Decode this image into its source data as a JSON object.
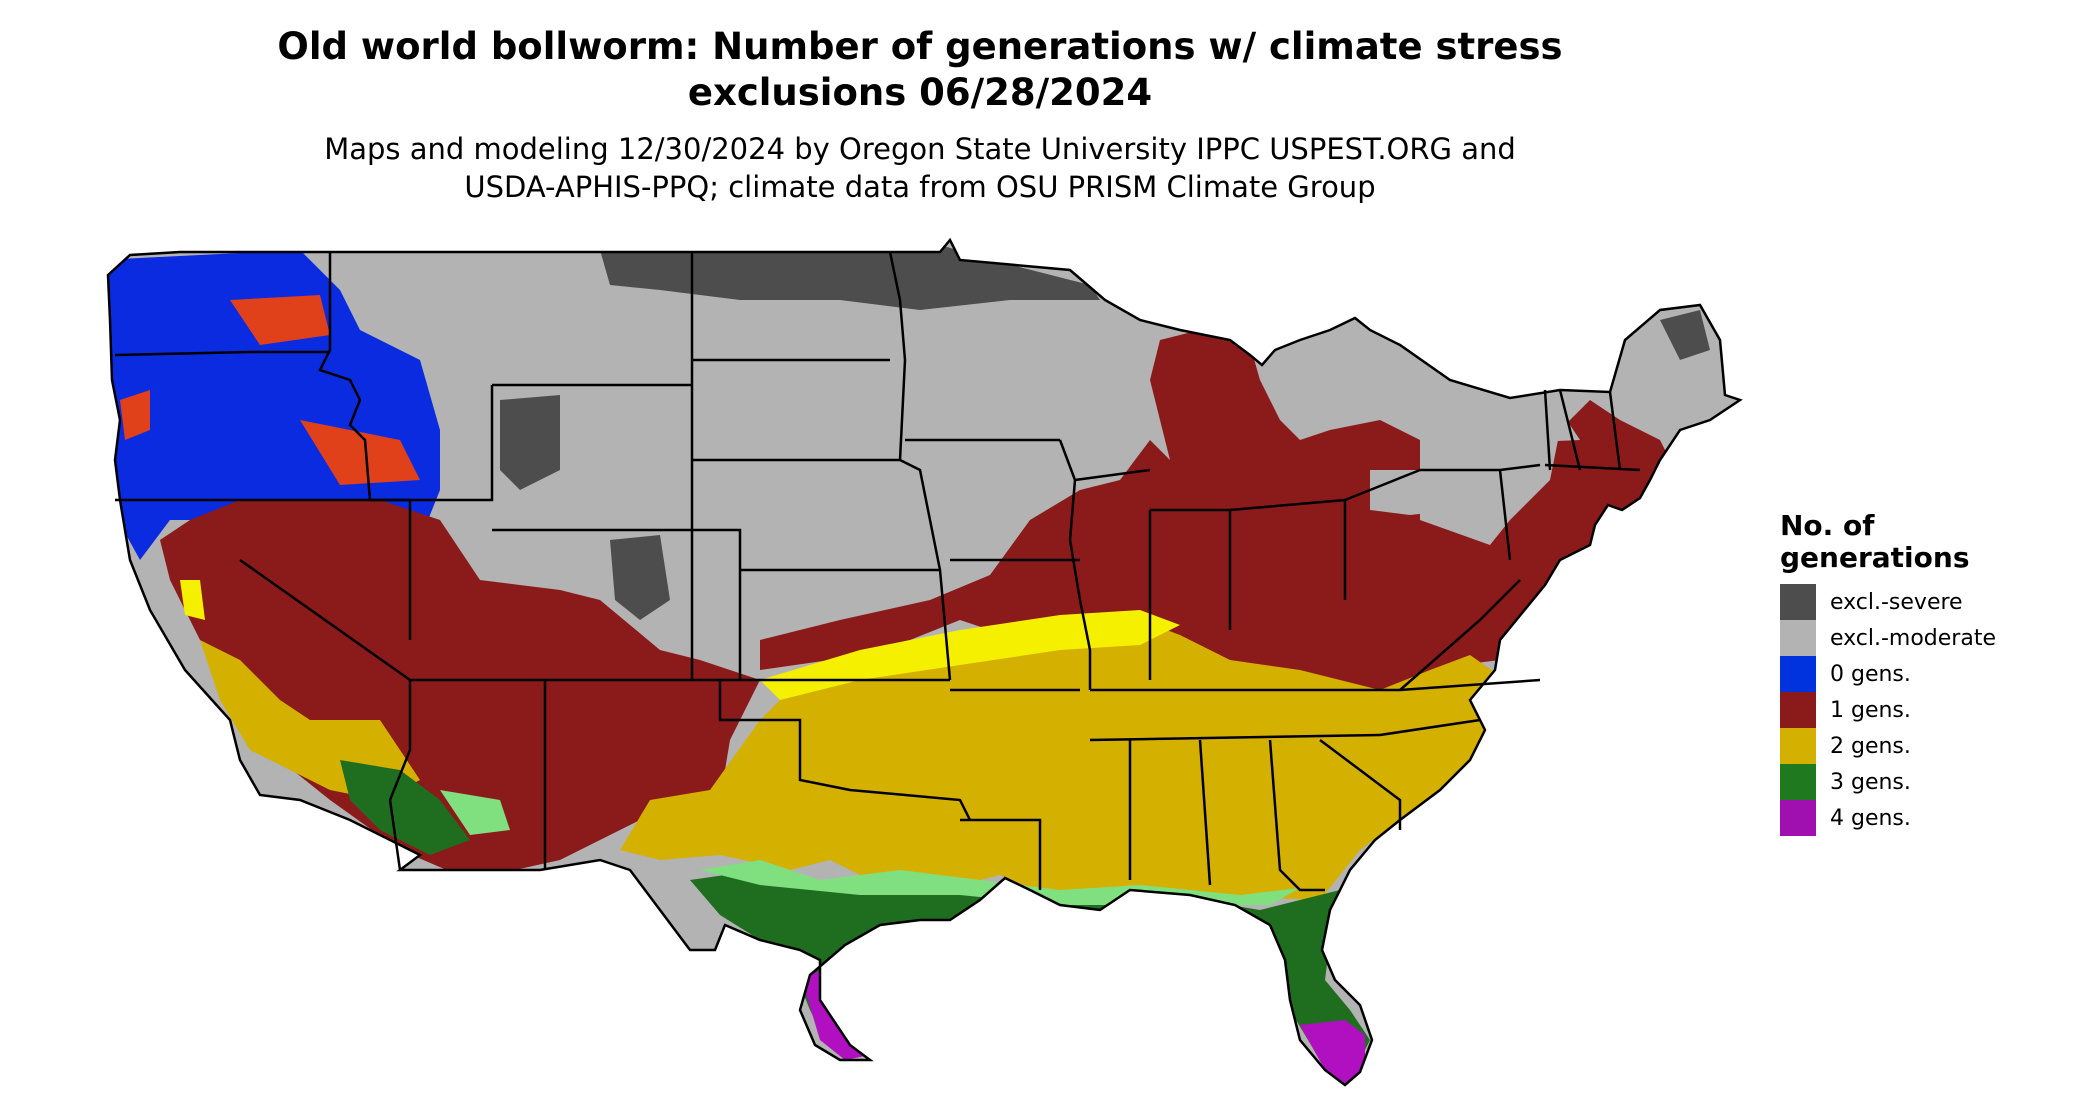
{
  "title": {
    "line1": "Old world bollworm: Number of generations w/ climate stress",
    "line2": "exclusions 06/28/2024"
  },
  "subtitle": {
    "line1": "Maps and modeling 12/30/2024 by Oregon State University IPPC USPEST.ORG and",
    "line2": "USDA-APHIS-PPQ; climate data from OSU PRISM Climate Group"
  },
  "legend": {
    "title_line1": "No. of",
    "title_line2": "generations",
    "items": [
      {
        "label": "excl.-severe",
        "color": "#4d4d4d"
      },
      {
        "label": "excl.-moderate",
        "color": "#b3b3b3"
      },
      {
        "label": "0 gens.",
        "color": "#0033dd"
      },
      {
        "label": "1 gens.",
        "color": "#8b1a1a"
      },
      {
        "label": "2 gens.",
        "color": "#d4b000"
      },
      {
        "label": "3 gens.",
        "color": "#1f7a1f"
      },
      {
        "label": "4 gens.",
        "color": "#a010b0"
      }
    ]
  },
  "map": {
    "region": "contiguous United States",
    "colors": {
      "excl_severe": "#4d4d4d",
      "excl_moderate": "#b3b3b3",
      "gen0": "#0a2be0",
      "gen1": "#8b1a1a",
      "gen1_orange": "#e0401a",
      "gen2": "#d4b000",
      "gen2_bright": "#f5f000",
      "gen3": "#1f6e1f",
      "gen3_light": "#80e080",
      "gen4": "#b010c0"
    }
  }
}
